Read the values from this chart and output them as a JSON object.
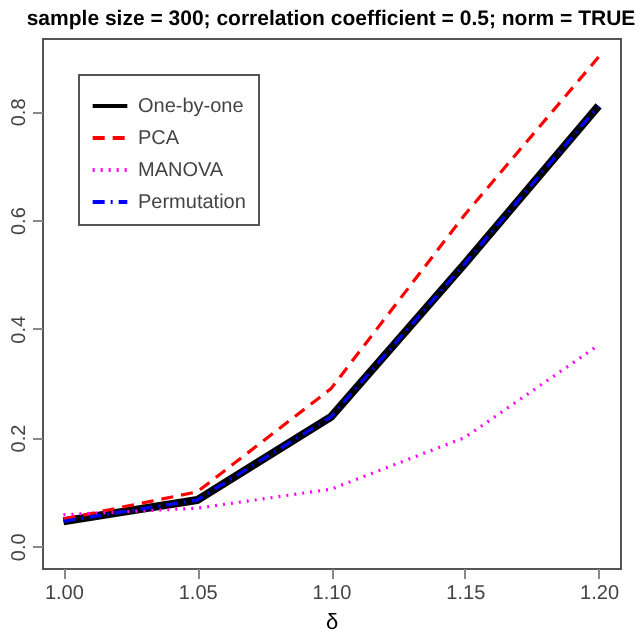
{
  "chart_data": {
    "type": "line",
    "title": "sample size = 300; correlation coefficient = 0.5; norm = TRUE",
    "xlabel": "δ",
    "x": [
      1.0,
      1.05,
      1.1,
      1.15,
      1.2
    ],
    "series": [
      {
        "name": "One-by-one",
        "color": "#000000",
        "line_style": "solid",
        "values": [
          0.046,
          0.085,
          0.238,
          0.52,
          0.81
        ]
      },
      {
        "name": "PCA",
        "color": "#ff0000",
        "line_style": "dashed",
        "values": [
          0.05,
          0.1,
          0.29,
          0.61,
          0.9
        ]
      },
      {
        "name": "MANOVA",
        "color": "#ff00ff",
        "line_style": "dotted",
        "values": [
          0.058,
          0.07,
          0.105,
          0.2,
          0.37
        ]
      },
      {
        "name": "Permutation",
        "color": "#0000ff",
        "line_style": "dashdot",
        "values": [
          0.046,
          0.085,
          0.238,
          0.52,
          0.81
        ]
      }
    ],
    "xlim": [
      0.992,
      1.208
    ],
    "xticks": [
      {
        "value": 1.0,
        "label": "1.00"
      },
      {
        "value": 1.05,
        "label": "1.05"
      },
      {
        "value": 1.1,
        "label": "1.10"
      },
      {
        "value": 1.15,
        "label": "1.15"
      },
      {
        "value": 1.2,
        "label": "1.20"
      }
    ],
    "ylim": [
      -0.04,
      0.935
    ],
    "yticks": [
      {
        "value": 0,
        "label": "0.0"
      },
      {
        "value": 0.2,
        "label": "0.2"
      },
      {
        "value": 0.4,
        "label": "0.4"
      },
      {
        "value": 0.6,
        "label": "0.6"
      },
      {
        "value": 0.8,
        "label": "0.8"
      }
    ],
    "grid": false,
    "legend": "top left"
  }
}
